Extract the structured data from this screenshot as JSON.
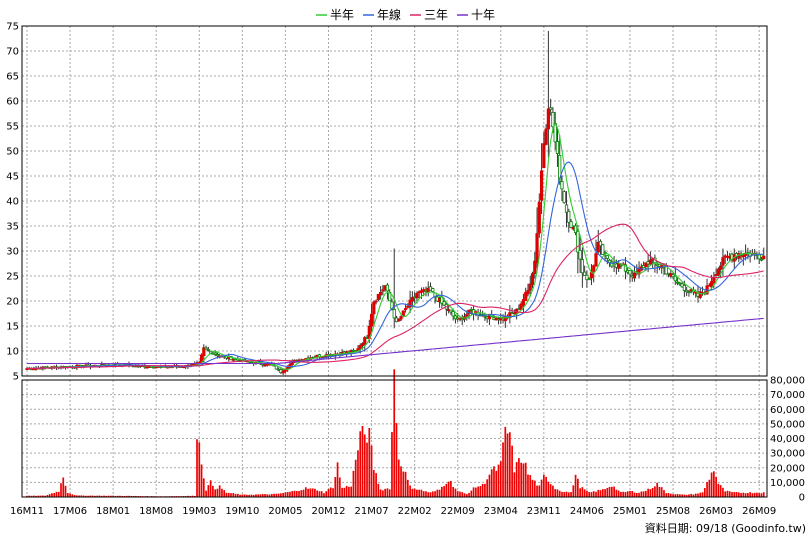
{
  "chart_data": {
    "type": "candlestick",
    "legend": [
      {
        "name": "半年",
        "color": "#33cc33"
      },
      {
        "name": "年線",
        "color": "#3366dd"
      },
      {
        "name": "三年",
        "color": "#dd2266"
      },
      {
        "name": "十年",
        "color": "#7733cc"
      }
    ],
    "legend_placement": "top",
    "grid": true,
    "price_axis": {
      "min": 5,
      "max": 75,
      "ticks": [
        "5",
        "10",
        "15",
        "20",
        "25",
        "30",
        "35",
        "40",
        "45",
        "50",
        "55",
        "60",
        "65",
        "70",
        "75"
      ]
    },
    "volume_axis": {
      "min": 0,
      "max": 80000,
      "ticks": [
        "0",
        "10,000",
        "20,000",
        "30,000",
        "40,000",
        "50,000",
        "60,000",
        "70,000",
        "80,000"
      ]
    },
    "x_ticks": [
      {
        "i": 0,
        "label": "16M11"
      },
      {
        "i": 19,
        "label": "17M06"
      },
      {
        "i": 38,
        "label": "18M01"
      },
      {
        "i": 57,
        "label": "18M08"
      },
      {
        "i": 76,
        "label": "19M03"
      },
      {
        "i": 95,
        "label": "19M10"
      },
      {
        "i": 114,
        "label": "20M05"
      },
      {
        "i": 133,
        "label": "20M12"
      },
      {
        "i": 152,
        "label": "21M07"
      },
      {
        "i": 171,
        "label": "22M02"
      },
      {
        "i": 190,
        "label": "22M09"
      },
      {
        "i": 209,
        "label": "23M04"
      },
      {
        "i": 228,
        "label": "23M11"
      },
      {
        "i": 247,
        "label": "24M06"
      },
      {
        "i": 266,
        "label": "25M01"
      },
      {
        "i": 285,
        "label": "25M08"
      },
      {
        "i": 304,
        "label": "26M03"
      },
      {
        "i": 323,
        "label": "26M09"
      }
    ],
    "bar_count": 326,
    "price_keys": [
      [
        0,
        6.5
      ],
      [
        10,
        6.7
      ],
      [
        20,
        6.9
      ],
      [
        30,
        7.1
      ],
      [
        40,
        7.3
      ],
      [
        50,
        7.0
      ],
      [
        60,
        6.8
      ],
      [
        70,
        7.0
      ],
      [
        76,
        7.5
      ],
      [
        78,
        10.5
      ],
      [
        85,
        9
      ],
      [
        95,
        8
      ],
      [
        108,
        7.2
      ],
      [
        112,
        5.8
      ],
      [
        118,
        8
      ],
      [
        128,
        9
      ],
      [
        138,
        9.5
      ],
      [
        145,
        10
      ],
      [
        150,
        13
      ],
      [
        153,
        20
      ],
      [
        158,
        23
      ],
      [
        163,
        15.5
      ],
      [
        168,
        19
      ],
      [
        172,
        21.5
      ],
      [
        178,
        22
      ],
      [
        184,
        19
      ],
      [
        190,
        16
      ],
      [
        196,
        18
      ],
      [
        202,
        17
      ],
      [
        210,
        16.5
      ],
      [
        216,
        18
      ],
      [
        221,
        22
      ],
      [
        224,
        28
      ],
      [
        226,
        40
      ],
      [
        228,
        52
      ],
      [
        230,
        60
      ],
      [
        232,
        55
      ],
      [
        235,
        45
      ],
      [
        238,
        38
      ],
      [
        242,
        33
      ],
      [
        245,
        26
      ],
      [
        248,
        24
      ],
      [
        252,
        31
      ],
      [
        256,
        28
      ],
      [
        262,
        27
      ],
      [
        268,
        25
      ],
      [
        274,
        28
      ],
      [
        280,
        27
      ],
      [
        286,
        24
      ],
      [
        292,
        22
      ],
      [
        296,
        21
      ],
      [
        300,
        22.5
      ],
      [
        304,
        26
      ],
      [
        308,
        28.5
      ],
      [
        313,
        29.5
      ],
      [
        318,
        29.5
      ],
      [
        325,
        29
      ]
    ],
    "volume_keys": [
      [
        0,
        800
      ],
      [
        8,
        900
      ],
      [
        12,
        3000
      ],
      [
        14,
        4000
      ],
      [
        16,
        14000
      ],
      [
        18,
        3000
      ],
      [
        22,
        1000
      ],
      [
        40,
        800
      ],
      [
        60,
        500
      ],
      [
        74,
        800
      ],
      [
        75,
        46000
      ],
      [
        77,
        24000
      ],
      [
        79,
        5000
      ],
      [
        81,
        10000
      ],
      [
        83,
        6000
      ],
      [
        85,
        7000
      ],
      [
        88,
        3000
      ],
      [
        95,
        1500
      ],
      [
        110,
        2000
      ],
      [
        118,
        4000
      ],
      [
        123,
        6000
      ],
      [
        128,
        5000
      ],
      [
        131,
        3000
      ],
      [
        135,
        7000
      ],
      [
        137,
        22000
      ],
      [
        139,
        6000
      ],
      [
        143,
        8000
      ],
      [
        147,
        42000
      ],
      [
        149,
        43000
      ],
      [
        151,
        42000
      ],
      [
        153,
        20000
      ],
      [
        156,
        5000
      ],
      [
        160,
        6000
      ],
      [
        162,
        83000
      ],
      [
        164,
        26000
      ],
      [
        166,
        20000
      ],
      [
        169,
        7000
      ],
      [
        173,
        5000
      ],
      [
        178,
        3000
      ],
      [
        182,
        5000
      ],
      [
        186,
        12000
      ],
      [
        190,
        4000
      ],
      [
        194,
        2000
      ],
      [
        198,
        7000
      ],
      [
        201,
        8000
      ],
      [
        205,
        18000
      ],
      [
        207,
        19000
      ],
      [
        209,
        22000
      ],
      [
        211,
        45000
      ],
      [
        213,
        43000
      ],
      [
        215,
        19000
      ],
      [
        217,
        24000
      ],
      [
        219,
        26000
      ],
      [
        221,
        16000
      ],
      [
        223,
        12000
      ],
      [
        226,
        7000
      ],
      [
        228,
        14000
      ],
      [
        231,
        10000
      ],
      [
        233,
        6000
      ],
      [
        236,
        4000
      ],
      [
        240,
        3000
      ],
      [
        242,
        15000
      ],
      [
        244,
        7000
      ],
      [
        248,
        3000
      ],
      [
        254,
        5000
      ],
      [
        258,
        8000
      ],
      [
        262,
        3000
      ],
      [
        266,
        4000
      ],
      [
        270,
        3000
      ],
      [
        274,
        5000
      ],
      [
        278,
        9000
      ],
      [
        282,
        3000
      ],
      [
        286,
        2000
      ],
      [
        290,
        1500
      ],
      [
        294,
        2000
      ],
      [
        298,
        3000
      ],
      [
        301,
        13000
      ],
      [
        303,
        19000
      ],
      [
        305,
        9000
      ],
      [
        308,
        4000
      ],
      [
        312,
        3000
      ],
      [
        325,
        3000
      ]
    ],
    "footer": "資料日期: 09/18 (Goodinfo.tw)"
  }
}
